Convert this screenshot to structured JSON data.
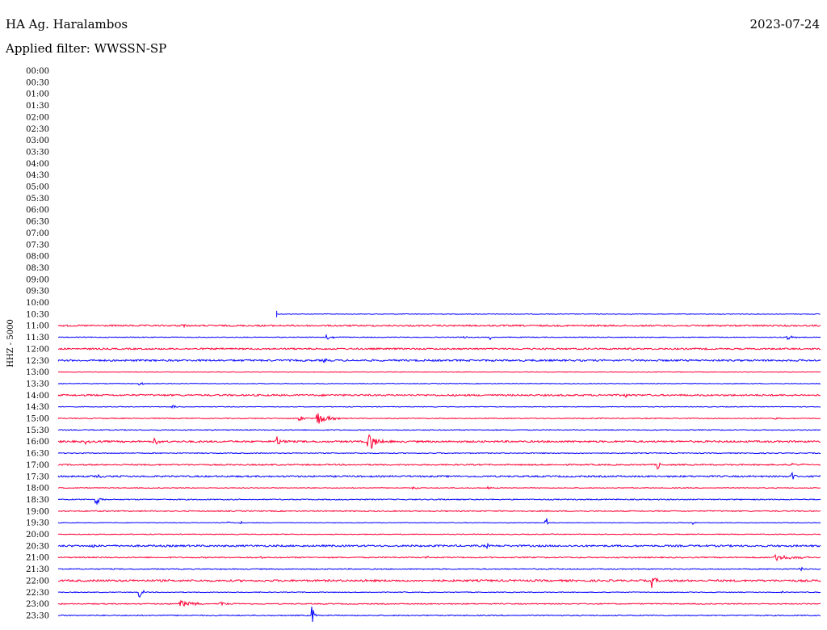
{
  "header": {
    "station": "HA Ag. Haralambos",
    "date": "2023-07-24",
    "filter": "Applied filter: WWSSN-SP"
  },
  "chart_data": {
    "type": "line",
    "title": "HA Ag. Haralambos",
    "subtitle": "Applied filter: WWSSN-SP",
    "date": "2023-07-24",
    "ylabel": "HHZ - 5000",
    "xlabel": "",
    "x_unit": "minutes within each 30-minute trace",
    "xlim": [
      0,
      30
    ],
    "colors": {
      "odd": "#0000ff",
      "even": "#ff0033"
    },
    "data_start": {
      "row": "10:30",
      "minute": 8.6
    },
    "rows": [
      {
        "label": "00:00",
        "events": [],
        "noise": 0
      },
      {
        "label": "00:30",
        "events": [],
        "noise": 0
      },
      {
        "label": "01:00",
        "events": [],
        "noise": 0
      },
      {
        "label": "01:30",
        "events": [],
        "noise": 0
      },
      {
        "label": "02:00",
        "events": [],
        "noise": 0
      },
      {
        "label": "02:30",
        "events": [],
        "noise": 0
      },
      {
        "label": "03:00",
        "events": [],
        "noise": 0
      },
      {
        "label": "03:30",
        "events": [],
        "noise": 0
      },
      {
        "label": "04:00",
        "events": [],
        "noise": 0
      },
      {
        "label": "04:30",
        "events": [],
        "noise": 0
      },
      {
        "label": "05:00",
        "events": [],
        "noise": 0
      },
      {
        "label": "05:30",
        "events": [],
        "noise": 0
      },
      {
        "label": "06:00",
        "events": [],
        "noise": 0
      },
      {
        "label": "06:30",
        "events": [],
        "noise": 0
      },
      {
        "label": "07:00",
        "events": [],
        "noise": 0
      },
      {
        "label": "07:30",
        "events": [],
        "noise": 0
      },
      {
        "label": "08:00",
        "events": [],
        "noise": 0
      },
      {
        "label": "08:30",
        "events": [],
        "noise": 0
      },
      {
        "label": "09:00",
        "events": [],
        "noise": 0
      },
      {
        "label": "09:30",
        "events": [],
        "noise": 0
      },
      {
        "label": "10:00",
        "events": [],
        "noise": 0
      },
      {
        "label": "10:30",
        "events": [],
        "noise": 0.5
      },
      {
        "label": "11:00",
        "events": [
          [
            4.9,
            3,
            0.3
          ]
        ],
        "noise": 1.2
      },
      {
        "label": "11:30",
        "events": [
          [
            10.6,
            3,
            0.8
          ],
          [
            16.0,
            2,
            0.3
          ],
          [
            17.0,
            3,
            0.4
          ],
          [
            28.7,
            3,
            0.6
          ]
        ],
        "noise": 0.6
      },
      {
        "label": "12:00",
        "events": [],
        "noise": 1.2
      },
      {
        "label": "12:30",
        "events": [
          [
            10.5,
            2,
            0.2
          ]
        ],
        "noise": 1.4
      },
      {
        "label": "13:00",
        "events": [],
        "noise": 0.5
      },
      {
        "label": "13:30",
        "events": [
          [
            3.2,
            2,
            0.5
          ]
        ],
        "noise": 0.5
      },
      {
        "label": "14:00",
        "events": [
          [
            22.3,
            3,
            0.5
          ]
        ],
        "noise": 1.3
      },
      {
        "label": "14:30",
        "events": [
          [
            4.5,
            2,
            0.5
          ]
        ],
        "noise": 0.5
      },
      {
        "label": "15:00",
        "events": [
          [
            10.2,
            9,
            1.0
          ],
          [
            9.5,
            3,
            0.6
          ],
          [
            28.2,
            2,
            0.4
          ]
        ],
        "noise": 0.7
      },
      {
        "label": "15:30",
        "events": [],
        "noise": 0.7
      },
      {
        "label": "16:00",
        "events": [
          [
            12.2,
            12,
            1.0
          ],
          [
            8.6,
            6,
            0.6
          ],
          [
            3.8,
            5,
            0.5
          ],
          [
            1.1,
            3,
            0.3
          ]
        ],
        "noise": 1.4
      },
      {
        "label": "16:30",
        "events": [],
        "noise": 0.7
      },
      {
        "label": "17:00",
        "events": [
          [
            23.6,
            7,
            0.2
          ],
          [
            28.9,
            3,
            0.6
          ]
        ],
        "noise": 1.0
      },
      {
        "label": "17:30",
        "events": [
          [
            28.9,
            6,
            0.2
          ],
          [
            1.5,
            2,
            1.0
          ]
        ],
        "noise": 1.2
      },
      {
        "label": "18:00",
        "events": [
          [
            14.0,
            2,
            0.4
          ],
          [
            16.9,
            2,
            0.3
          ]
        ],
        "noise": 0.6
      },
      {
        "label": "18:30",
        "events": [
          [
            1.5,
            6,
            0.7
          ],
          [
            15.0,
            2,
            0.3
          ]
        ],
        "noise": 0.8
      },
      {
        "label": "19:00",
        "events": [],
        "noise": 0.9
      },
      {
        "label": "19:30",
        "events": [
          [
            19.2,
            8,
            0.2
          ],
          [
            7.2,
            2,
            0.2
          ],
          [
            6.7,
            2,
            0.3
          ],
          [
            25.0,
            2,
            0.3
          ]
        ],
        "noise": 0.5
      },
      {
        "label": "20:00",
        "events": [],
        "noise": 0.6
      },
      {
        "label": "20:30",
        "events": [
          [
            1.4,
            3,
            0.2
          ],
          [
            16.9,
            3,
            0.2
          ]
        ],
        "noise": 1.4
      },
      {
        "label": "21:00",
        "events": [
          [
            28.2,
            4,
            2.0
          ],
          [
            14.5,
            2,
            0.4
          ],
          [
            8.0,
            2,
            0.2
          ]
        ],
        "noise": 0.9
      },
      {
        "label": "21:30",
        "events": [
          [
            29.2,
            4,
            0.2
          ]
        ],
        "noise": 0.8
      },
      {
        "label": "22:00",
        "events": [
          [
            23.4,
            9,
            0.3
          ],
          [
            12.0,
            2,
            0.2
          ]
        ],
        "noise": 1.5
      },
      {
        "label": "22:30",
        "events": [
          [
            3.2,
            8,
            0.3
          ],
          [
            28.5,
            2,
            0.2
          ]
        ],
        "noise": 0.6
      },
      {
        "label": "23:00",
        "events": [
          [
            4.8,
            4,
            1.8
          ],
          [
            6.4,
            2,
            1.0
          ]
        ],
        "noise": 0.8
      },
      {
        "label": "23:30",
        "events": [
          [
            10.0,
            13,
            0.2
          ]
        ],
        "noise": 0.8
      }
    ]
  }
}
